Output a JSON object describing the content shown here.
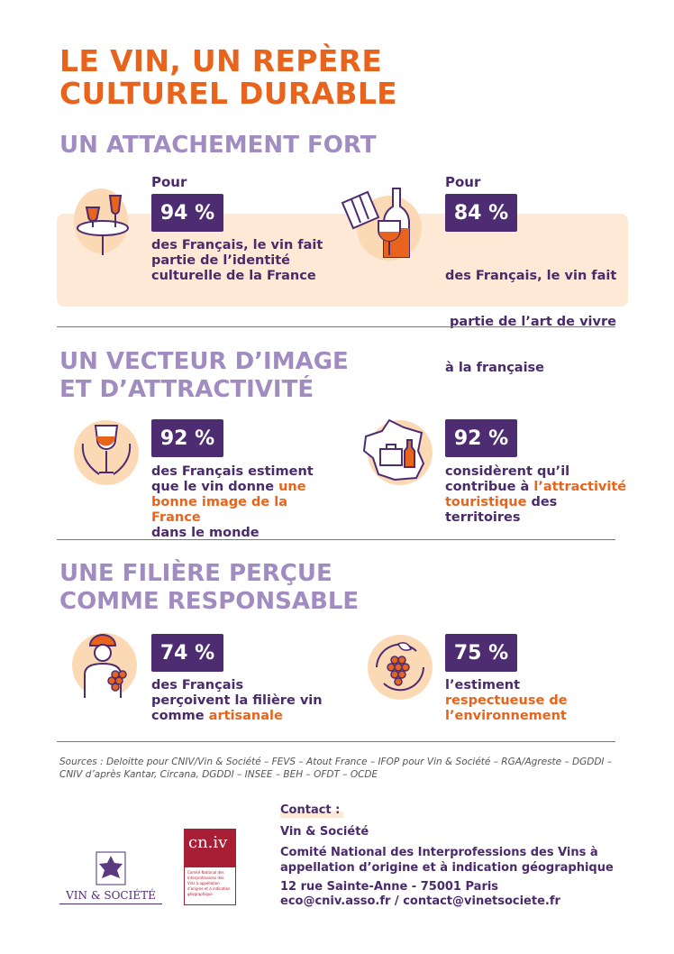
{
  "title": {
    "line1": "LE VIN, UN REPÈRE",
    "line2": "CULTUREL DURABLE"
  },
  "sections": [
    {
      "heading_line1": "UN ATTACHEMENT FORT",
      "heading_line2": "",
      "stats": [
        {
          "prefix": "Pour",
          "value": "94 %",
          "icon": "wine-glasses-table-icon",
          "text": [
            "des Français, le vin fait",
            "partie de l’identité",
            "culturelle de la France"
          ]
        },
        {
          "prefix": "Pour",
          "value": "84 %",
          "icon": "flag-wine-bottle-icon",
          "text": [
            "des Français, le vin fait",
            " partie de l’art de vivre",
            "à la française"
          ]
        }
      ]
    },
    {
      "heading_line1": "UN VECTEUR D’IMAGE",
      "heading_line2": "ET D’ATTRACTIVITÉ",
      "stats": [
        {
          "value": "92 %",
          "icon": "wine-glass-laurel-icon",
          "text_a": "des Français estiment",
          "text_b": "que le vin donne ",
          "text_b_hl": "une",
          "text_c_hl": "bonne image de la France",
          "text_d": "dans le monde"
        },
        {
          "value": "92 %",
          "icon": "france-map-icon",
          "text_a": "considèrent qu’il",
          "text_b": "contribue à ",
          "text_b_hl": "l’attractivité",
          "text_c_hl": "touristique",
          "text_c": " des",
          "text_d": "territoires"
        }
      ]
    },
    {
      "heading_line1": "UNE FILIÈRE PERÇUE",
      "heading_line2": "COMME RESPONSABLE",
      "stats": [
        {
          "value": "74 %",
          "icon": "winegrower-icon",
          "text_a": "des Français",
          "text_b": "perçoivent la filière vin",
          "text_c": "comme ",
          "text_c_hl": "artisanale"
        },
        {
          "value": "75 %",
          "icon": "grapes-cycle-icon",
          "text_a": "l’estiment",
          "text_b_hl": "respectueuse de",
          "text_c_hl": "l’environnement"
        }
      ]
    }
  ],
  "sources": {
    "line1": "Sources : Deloitte pour CNIV/Vin & Société – FEVS – Atout France – IFOP pour Vin & Société – RGA/Agreste – DGDDI –",
    "line2": "CNIV d’après Kantar, Circana, DGDDI – INSEE – BEH – OFDT – OCDE"
  },
  "logos": {
    "vin_societe": "VIN & SOCIÉTÉ",
    "cniv": "cn.iv",
    "cniv_sub": "Comité National des Interprofessions des Vins à appellation d’origine et à indication géographique"
  },
  "contact": {
    "label": "Contact :",
    "org1": "Vin & Société",
    "org2_line1": "Comité National des Interprofessions des Vins à",
    "org2_line2": "appellation d’origine et à indication géographique",
    "address": "12 rue Sainte-Anne - 75001 Paris",
    "emails": "eco@cniv.asso.fr / contact@vinetsociete.fr"
  },
  "colors": {
    "orange": "#e8641c",
    "purple": "#4d2c72",
    "lavender": "#a08cc0",
    "peach": "#fde9d6"
  }
}
